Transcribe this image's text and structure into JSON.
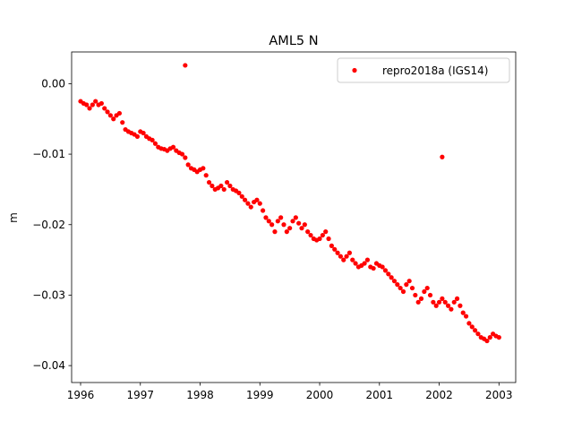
{
  "chart_data": {
    "type": "scatter",
    "title": "AML5 N",
    "xlabel": "",
    "ylabel": "m",
    "xlim": [
      1995.85,
      2003.28
    ],
    "ylim": [
      -0.0424,
      0.0045
    ],
    "xticks": [
      1996,
      1997,
      1998,
      1999,
      2000,
      2001,
      2002,
      2003
    ],
    "xtick_labels": [
      "1996",
      "1997",
      "1998",
      "1999",
      "2000",
      "2001",
      "2002",
      "2003"
    ],
    "yticks": [
      0.0,
      -0.01,
      -0.02,
      -0.03,
      -0.04
    ],
    "ytick_labels": [
      "0.00",
      "−0.01",
      "−0.02",
      "−0.03",
      "−0.04"
    ],
    "grid": false,
    "legend_position": "top-right",
    "series": [
      {
        "name": "repro2018a (IGS14)",
        "color": "#ff0000",
        "marker": "circle",
        "x": [
          1996.0,
          1996.05,
          1996.1,
          1996.15,
          1996.2,
          1996.25,
          1996.3,
          1996.35,
          1996.4,
          1996.45,
          1996.5,
          1996.55,
          1996.6,
          1996.65,
          1996.7,
          1996.75,
          1996.8,
          1996.85,
          1996.9,
          1996.95,
          1997.0,
          1997.05,
          1997.1,
          1997.15,
          1997.2,
          1997.25,
          1997.3,
          1997.35,
          1997.4,
          1997.45,
          1997.5,
          1997.55,
          1997.6,
          1997.65,
          1997.7,
          1997.75,
          1997.8,
          1997.85,
          1997.9,
          1997.95,
          1998.0,
          1998.05,
          1998.1,
          1998.15,
          1998.2,
          1998.25,
          1998.3,
          1998.35,
          1998.4,
          1998.45,
          1998.5,
          1998.55,
          1998.6,
          1998.65,
          1998.7,
          1998.75,
          1998.8,
          1998.85,
          1998.9,
          1998.95,
          1999.0,
          1999.05,
          1999.1,
          1999.15,
          1999.2,
          1999.25,
          1999.3,
          1999.35,
          1999.4,
          1999.45,
          1999.5,
          1999.55,
          1999.6,
          1999.65,
          1999.7,
          1999.75,
          1999.8,
          1999.85,
          1999.9,
          1999.95,
          2000.0,
          2000.05,
          2000.1,
          2000.15,
          2000.2,
          2000.25,
          2000.3,
          2000.35,
          2000.4,
          2000.45,
          2000.5,
          2000.55,
          2000.6,
          2000.65,
          2000.7,
          2000.75,
          2000.8,
          2000.85,
          2000.9,
          2000.95,
          2001.0,
          2001.05,
          2001.1,
          2001.15,
          2001.2,
          2001.25,
          2001.3,
          2001.35,
          2001.4,
          2001.45,
          2001.5,
          2001.55,
          2001.6,
          2001.65,
          2001.7,
          2001.75,
          2001.8,
          2001.85,
          2001.9,
          2001.95,
          2002.0,
          2002.05,
          2002.1,
          2002.15,
          2002.2,
          2002.25,
          2002.3,
          2002.35,
          2002.4,
          2002.45,
          2002.5,
          2002.55,
          2002.6,
          2002.65,
          2002.7,
          2002.75,
          2002.8,
          2002.85,
          2002.9,
          2002.95,
          2003.0,
          1997.75,
          2002.05
        ],
        "y": [
          -0.0025,
          -0.0028,
          -0.003,
          -0.0035,
          -0.003,
          -0.0025,
          -0.003,
          -0.0028,
          -0.0035,
          -0.004,
          -0.0045,
          -0.005,
          -0.0045,
          -0.0042,
          -0.0055,
          -0.0065,
          -0.0068,
          -0.007,
          -0.0072,
          -0.0075,
          -0.0068,
          -0.007,
          -0.0075,
          -0.0078,
          -0.008,
          -0.0085,
          -0.009,
          -0.0092,
          -0.0093,
          -0.0095,
          -0.0092,
          -0.009,
          -0.0095,
          -0.0098,
          -0.01,
          -0.0105,
          -0.0115,
          -0.012,
          -0.0122,
          -0.0125,
          -0.0122,
          -0.012,
          -0.013,
          -0.014,
          -0.0145,
          -0.015,
          -0.0148,
          -0.0145,
          -0.015,
          -0.014,
          -0.0145,
          -0.015,
          -0.0152,
          -0.0155,
          -0.016,
          -0.0165,
          -0.017,
          -0.0175,
          -0.0168,
          -0.0165,
          -0.017,
          -0.018,
          -0.019,
          -0.0195,
          -0.02,
          -0.021,
          -0.0195,
          -0.019,
          -0.02,
          -0.021,
          -0.0205,
          -0.0195,
          -0.019,
          -0.0198,
          -0.0205,
          -0.02,
          -0.021,
          -0.0215,
          -0.022,
          -0.0222,
          -0.022,
          -0.0215,
          -0.021,
          -0.022,
          -0.023,
          -0.0235,
          -0.024,
          -0.0245,
          -0.025,
          -0.0245,
          -0.024,
          -0.025,
          -0.0255,
          -0.026,
          -0.0258,
          -0.0255,
          -0.025,
          -0.026,
          -0.0262,
          -0.0255,
          -0.0258,
          -0.026,
          -0.0265,
          -0.027,
          -0.0275,
          -0.028,
          -0.0285,
          -0.029,
          -0.0295,
          -0.0285,
          -0.028,
          -0.029,
          -0.03,
          -0.031,
          -0.0305,
          -0.0295,
          -0.029,
          -0.03,
          -0.031,
          -0.0315,
          -0.031,
          -0.0305,
          -0.031,
          -0.0315,
          -0.032,
          -0.031,
          -0.0305,
          -0.0315,
          -0.0325,
          -0.033,
          -0.034,
          -0.0345,
          -0.035,
          -0.0355,
          -0.036,
          -0.0362,
          -0.0365,
          -0.036,
          -0.0355,
          -0.0358,
          -0.036,
          0.0026,
          -0.0104
        ]
      }
    ]
  }
}
